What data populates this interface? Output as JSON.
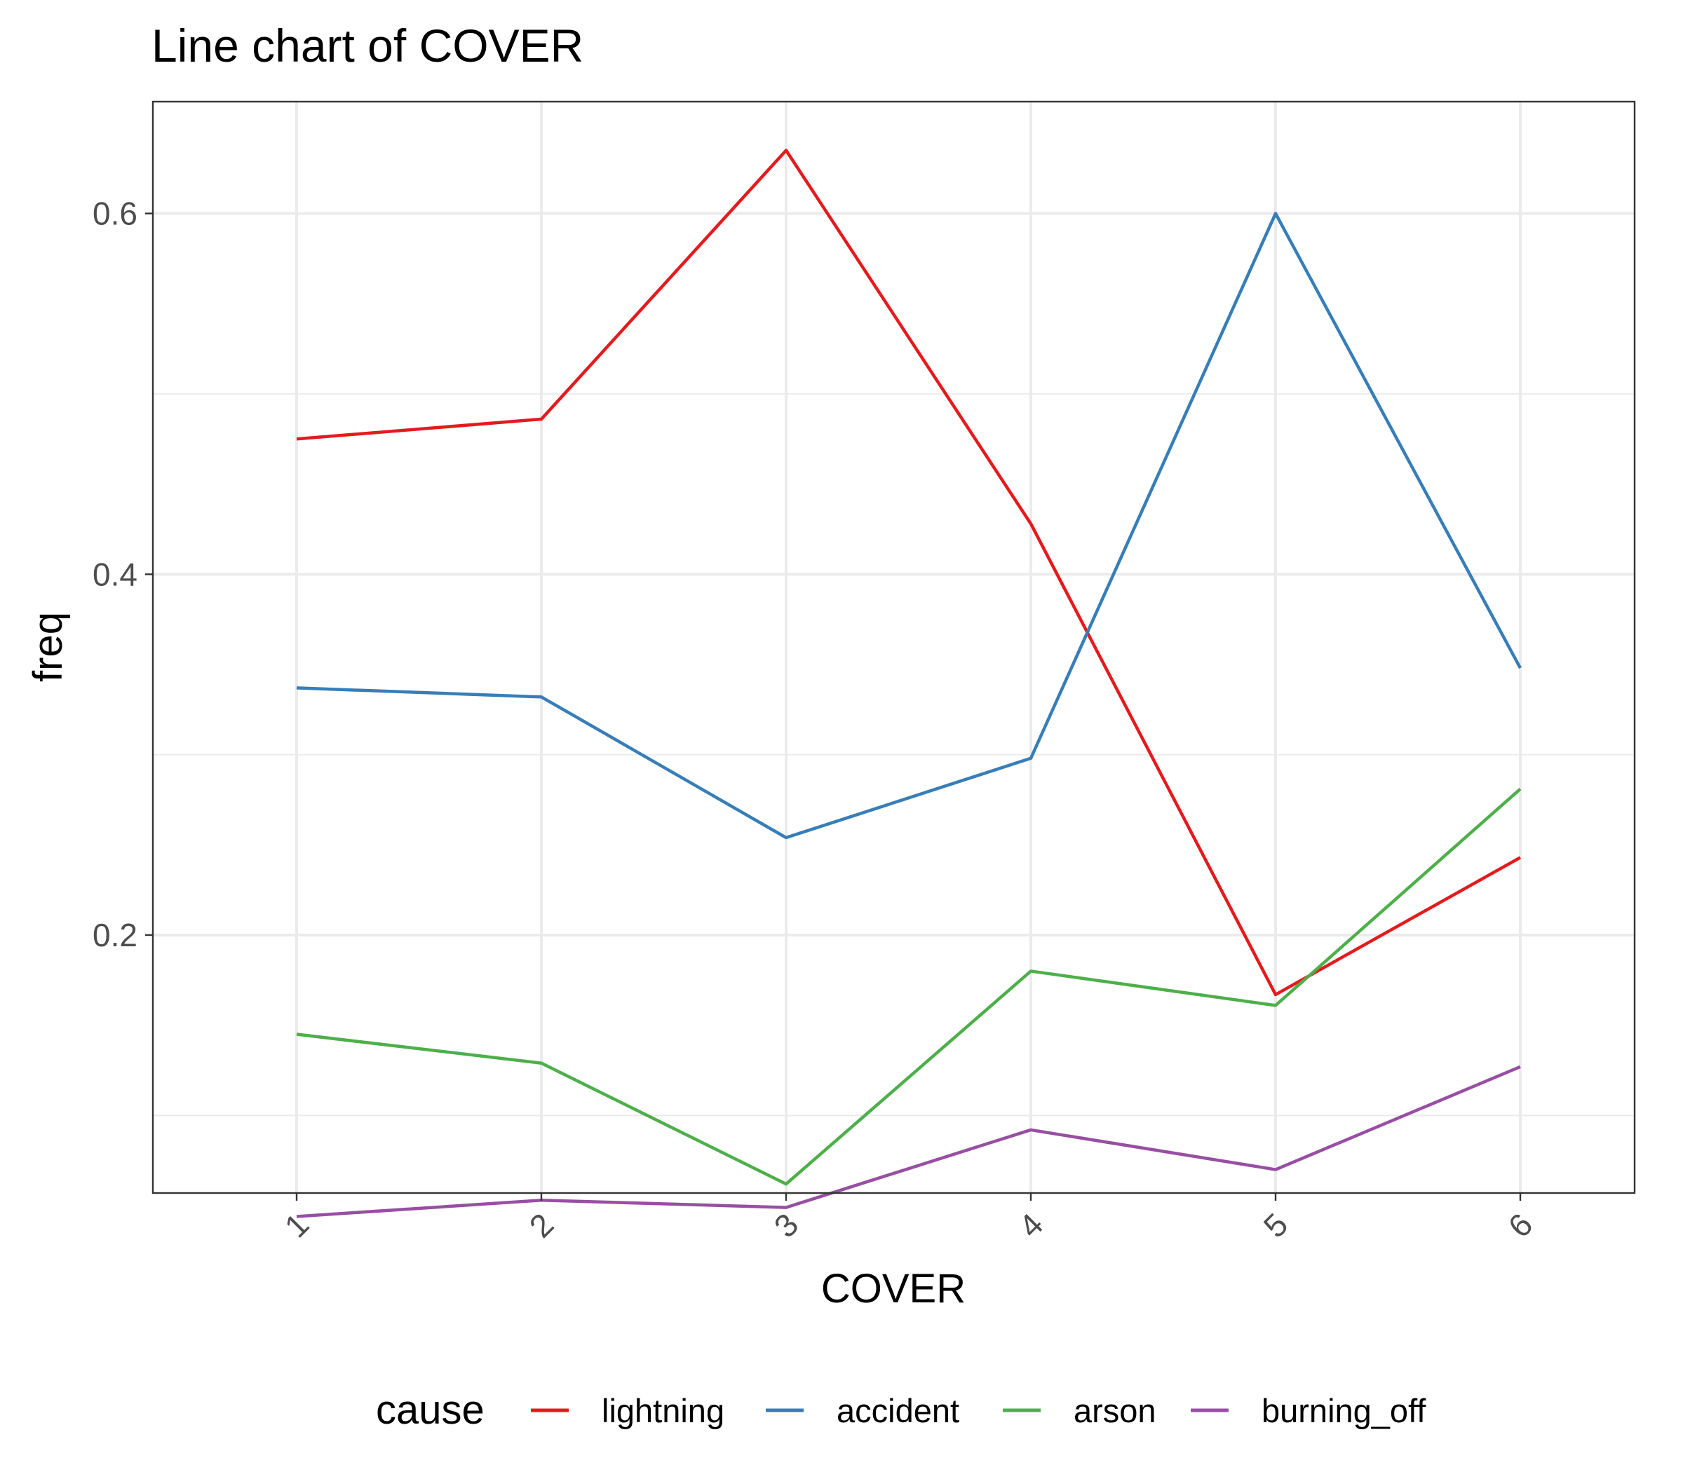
{
  "chart_data": {
    "type": "line",
    "title": "Line chart of COVER",
    "xlabel": "COVER",
    "ylabel": "freq",
    "x": [
      "1",
      "2",
      "3",
      "4",
      "5",
      "6"
    ],
    "y_ticks": [
      "0.2",
      "0.4",
      "0.6"
    ],
    "ylim": [
      0.057,
      0.662
    ],
    "grid": true,
    "x_tick_rotation": "45 degrees",
    "legend": {
      "title": "cause",
      "placement": "bottom"
    },
    "series": [
      {
        "name": "lightning",
        "color": "#e41a1c",
        "values": [
          0.475,
          0.486,
          0.635,
          0.428,
          0.167,
          0.243
        ]
      },
      {
        "name": "accident",
        "color": "#377eb8",
        "values": [
          0.337,
          0.332,
          0.254,
          0.298,
          0.6,
          0.348
        ]
      },
      {
        "name": "arson",
        "color": "#4daf4a",
        "values": [
          0.145,
          0.129,
          0.062,
          0.18,
          0.161,
          0.281
        ]
      },
      {
        "name": "burning_off",
        "color": "#984ea3",
        "values": [
          0.044,
          0.053,
          0.049,
          0.092,
          0.07,
          0.127
        ]
      }
    ]
  }
}
